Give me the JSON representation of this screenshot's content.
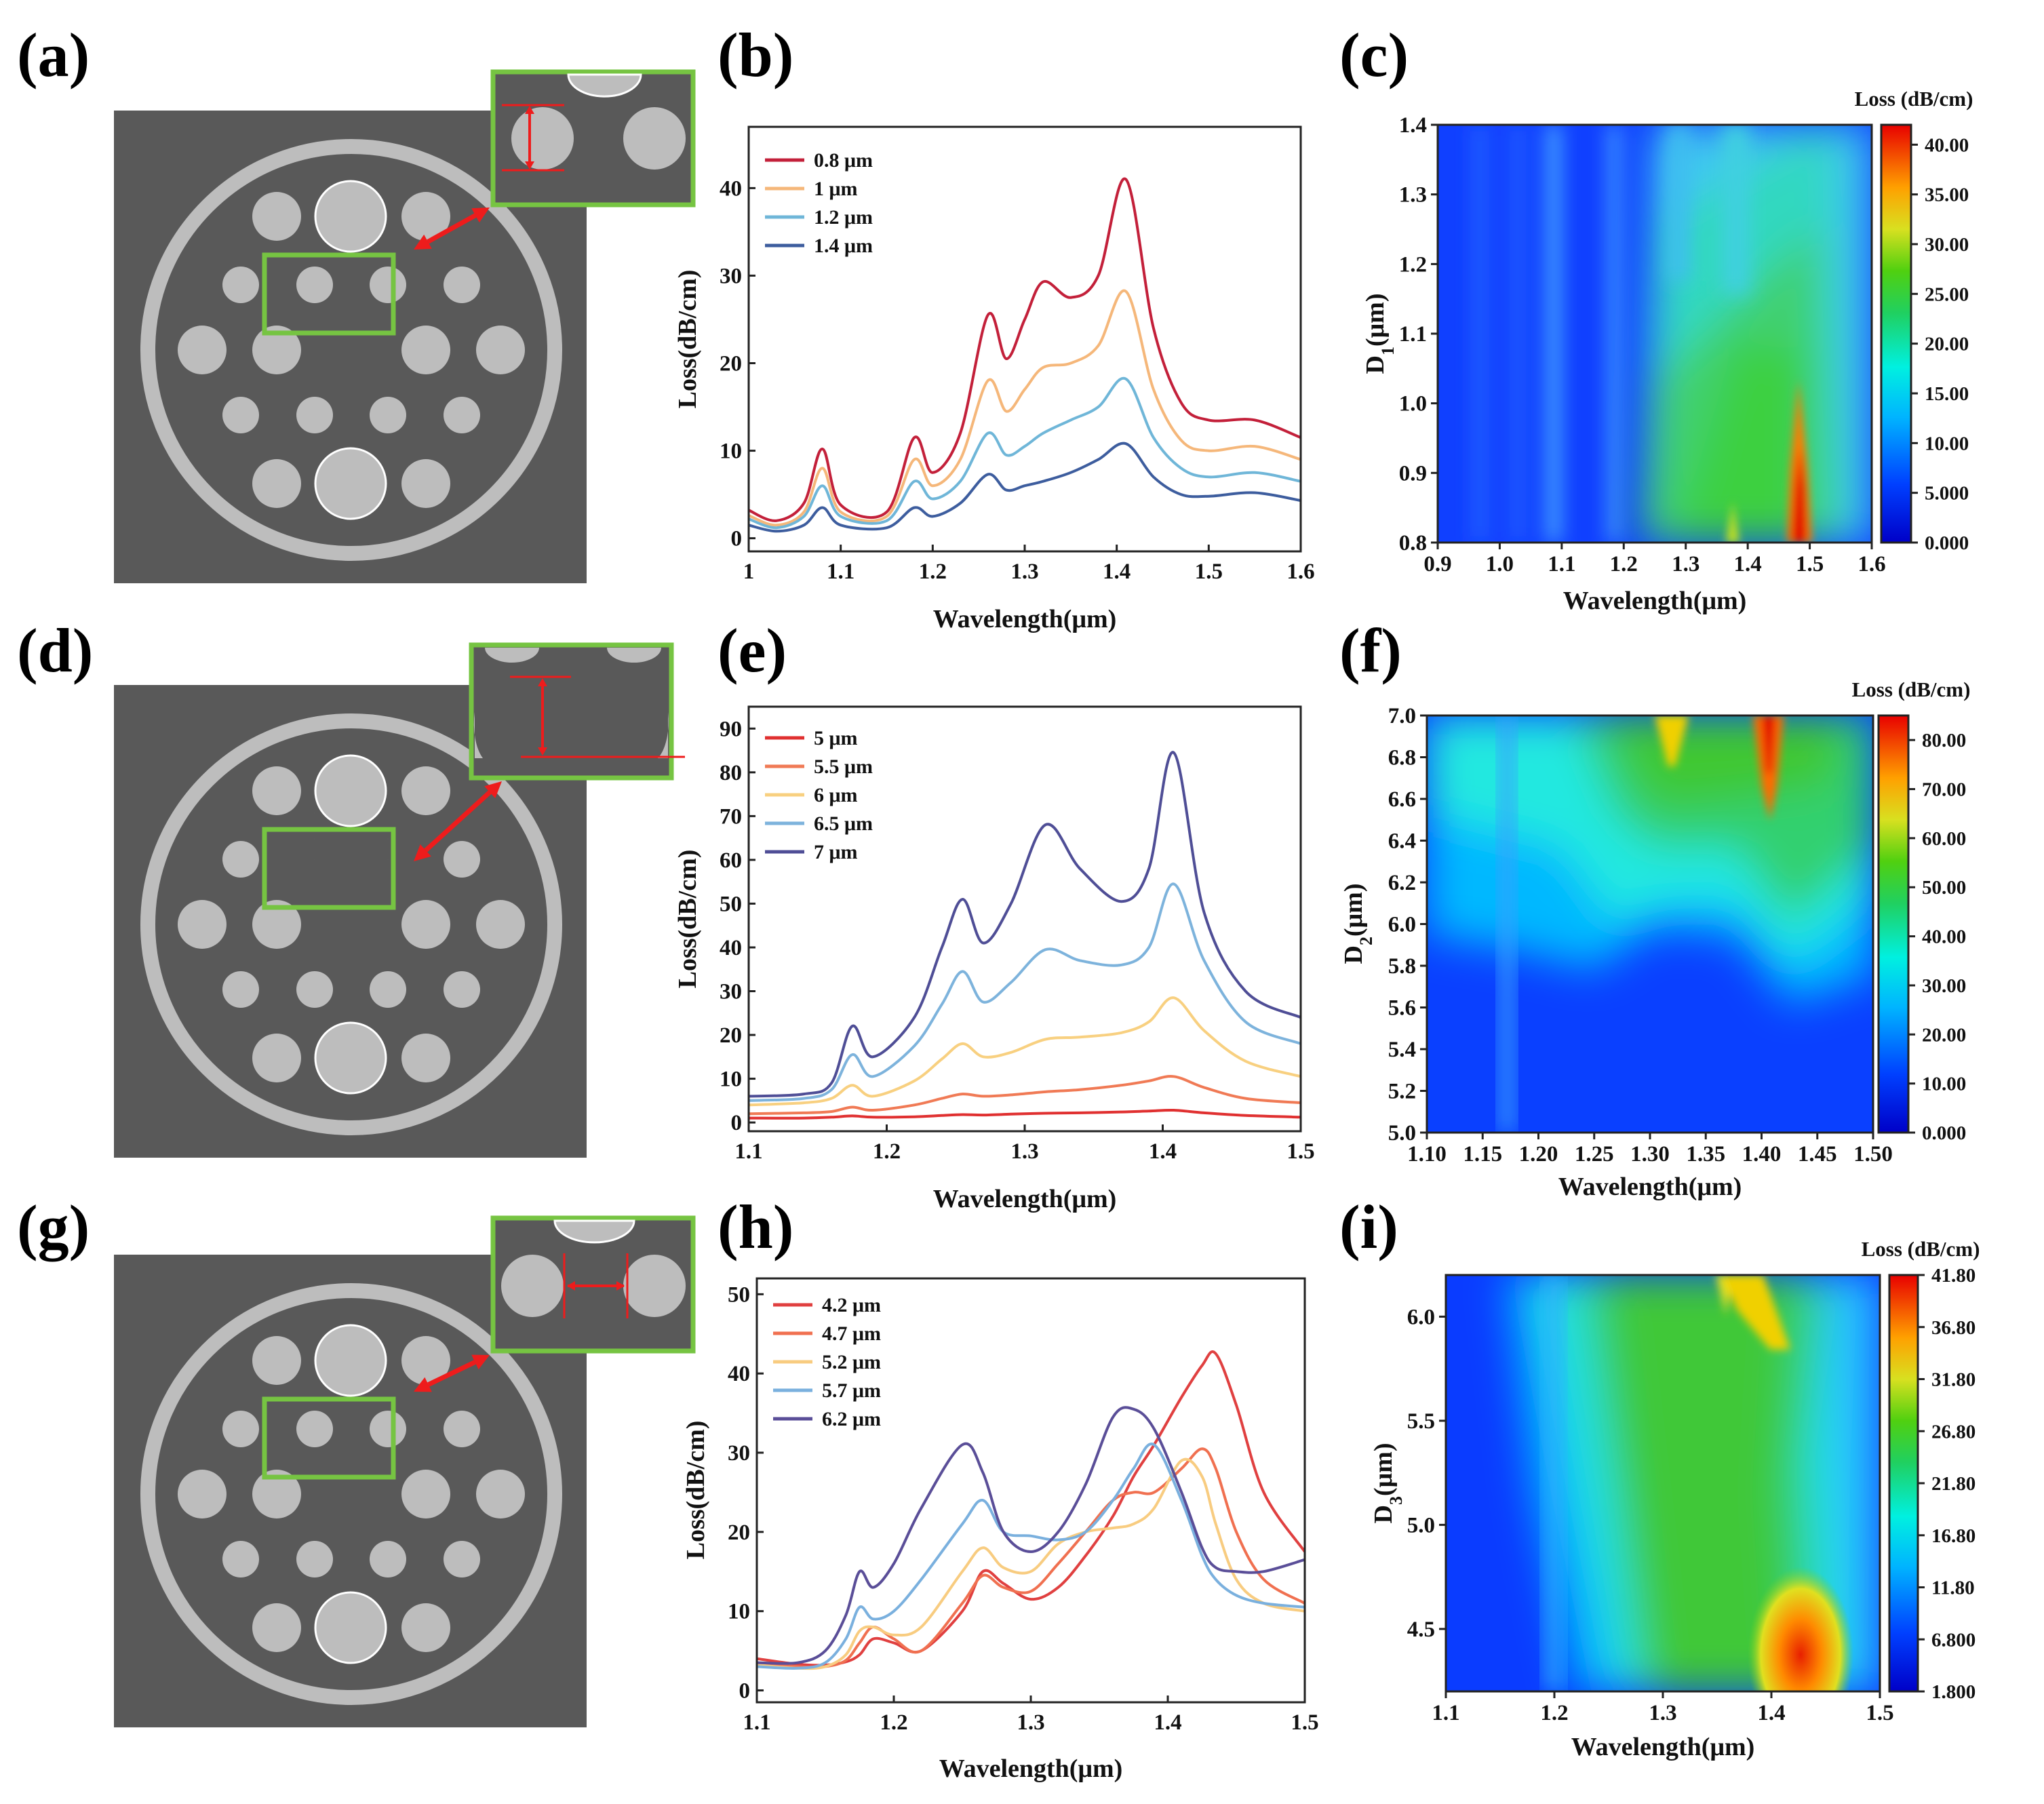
{
  "panel_labels": [
    "(a)",
    "(b)",
    "(c)",
    "(d)",
    "(e)",
    "(f)",
    "(g)",
    "(h)",
    "(i)"
  ],
  "colors": {
    "fiber_bg": "#595959",
    "tube": "#bdbdbd",
    "zoom_box": "#76c442",
    "arrow": "#ee1c1c"
  },
  "chart_data": [
    {
      "id": "b",
      "type": "line",
      "xlabel": "Wavelength(μm)",
      "ylabel": "Loss(dB/cm)",
      "xlim": [
        1.0,
        1.6
      ],
      "ylim": [
        -1.5,
        47
      ],
      "xticks": [
        1,
        1.1,
        1.2,
        1.3,
        1.4,
        1.5,
        1.6
      ],
      "xtick_labels": [
        "1",
        "1.1",
        "1.2",
        "1.3",
        "1.4",
        "1.5",
        "1.6"
      ],
      "yticks": [
        0,
        10,
        20,
        30,
        40
      ],
      "ytick_labels": [
        "0",
        "10",
        "20",
        "30",
        "40"
      ],
      "x": [
        1.0,
        1.03,
        1.06,
        1.08,
        1.1,
        1.15,
        1.18,
        1.2,
        1.23,
        1.26,
        1.28,
        1.3,
        1.32,
        1.35,
        1.38,
        1.41,
        1.44,
        1.47,
        1.5,
        1.55,
        1.6
      ],
      "series": [
        {
          "name": "0.8 μm",
          "color": "#c3203a",
          "values": [
            3.2,
            2,
            4,
            10.2,
            3.8,
            3,
            11.5,
            7.5,
            12,
            25.5,
            20.5,
            25,
            29.3,
            27.5,
            30,
            41,
            24,
            15.5,
            13.5,
            13.5,
            11.5
          ]
        },
        {
          "name": "1 μm",
          "color": "#f5b77a",
          "values": [
            2.6,
            1.5,
            3,
            8,
            3,
            2.5,
            9,
            6,
            9,
            18,
            14.5,
            17,
            19.5,
            20,
            22,
            28.2,
            17,
            11.2,
            10,
            10.5,
            9
          ]
        },
        {
          "name": "1.2 μm",
          "color": "#6fb6d8",
          "values": [
            2.2,
            1.2,
            2.5,
            6,
            2.5,
            2,
            6.5,
            4.5,
            6.5,
            12,
            9.5,
            10.5,
            12,
            13.5,
            15,
            18.2,
            11.5,
            8,
            7,
            7.5,
            6.5
          ]
        },
        {
          "name": "1.4 μm",
          "color": "#3d5d9e",
          "values": [
            1.5,
            0.8,
            1.5,
            3.5,
            1.5,
            1.2,
            3.5,
            2.5,
            4,
            7.3,
            5.5,
            6,
            6.5,
            7.5,
            9,
            10.8,
            7,
            5,
            4.8,
            5.2,
            4.3
          ]
        }
      ]
    },
    {
      "id": "c",
      "type": "heatmap",
      "xlabel": "Wavelength(μm)",
      "ylabel": "D1(μm)",
      "xlim": [
        0.9,
        1.6
      ],
      "ylim": [
        0.8,
        1.4
      ],
      "xticks": [
        0.9,
        1.0,
        1.1,
        1.2,
        1.3,
        1.4,
        1.5,
        1.6
      ],
      "xtick_labels": [
        "0.9",
        "1.0",
        "1.1",
        "1.2",
        "1.3",
        "1.4",
        "1.5",
        "1.6"
      ],
      "yticks": [
        0.8,
        0.9,
        1.0,
        1.1,
        1.2,
        1.3,
        1.4
      ],
      "ytick_labels": [
        "0.8",
        "0.9",
        "1.0",
        "1.1",
        "1.2",
        "1.3",
        "1.4"
      ],
      "colorbar_title": "Loss (dB/cm)",
      "colorbar_range": [
        0,
        42
      ],
      "colorbar_ticks": [
        "0.000",
        "5.000",
        "10.00",
        "15.00",
        "20.00",
        "25.00",
        "30.00",
        "35.00",
        "40.00"
      ],
      "colorbar_values": [
        0,
        5,
        10,
        15,
        20,
        25,
        30,
        35,
        40
      ]
    },
    {
      "id": "e",
      "type": "line",
      "xlabel": "Wavelength(μm)",
      "ylabel": "Loss(dB/cm)",
      "xlim": [
        1.1,
        1.5
      ],
      "ylim": [
        -2,
        95
      ],
      "xticks": [
        1.1,
        1.2,
        1.3,
        1.4,
        1.5
      ],
      "xtick_labels": [
        "1.1",
        "1.2",
        "1.3",
        "1.4",
        "1.5"
      ],
      "yticks": [
        0,
        10,
        20,
        30,
        40,
        50,
        60,
        70,
        80,
        90
      ],
      "ytick_labels": [
        "0",
        "10",
        "20",
        "30",
        "40",
        "50",
        "60",
        "70",
        "80",
        "90"
      ],
      "x": [
        1.1,
        1.14,
        1.16,
        1.175,
        1.19,
        1.22,
        1.24,
        1.255,
        1.27,
        1.29,
        1.315,
        1.34,
        1.37,
        1.39,
        1.408,
        1.43,
        1.46,
        1.5
      ],
      "series": [
        {
          "name": "5 μm",
          "color": "#e03030",
          "values": [
            1,
            1,
            1.2,
            1.5,
            1.2,
            1.3,
            1.6,
            1.8,
            1.7,
            1.9,
            2.1,
            2.2,
            2.4,
            2.6,
            2.8,
            2.2,
            1.6,
            1.2
          ]
        },
        {
          "name": "5.5 μm",
          "color": "#f07a55",
          "values": [
            2,
            2.2,
            2.5,
            3.5,
            2.8,
            4,
            5.5,
            6.5,
            6,
            6.3,
            7,
            7.5,
            8.5,
            9.5,
            10.5,
            8,
            5.5,
            4.5
          ]
        },
        {
          "name": "6 μm",
          "color": "#f8d080",
          "values": [
            4,
            4.5,
            5.5,
            8.5,
            6,
            9.5,
            14.5,
            18,
            15,
            16,
            19,
            19.5,
            20.5,
            23,
            28.5,
            21,
            14,
            10.5
          ]
        },
        {
          "name": "6.5 μm",
          "color": "#7db3dc",
          "values": [
            5,
            5.5,
            7.5,
            15.5,
            10.5,
            17.5,
            27,
            34.5,
            27.5,
            32,
            39.5,
            37,
            36,
            40,
            54.5,
            37,
            23,
            18
          ]
        },
        {
          "name": "7 μm",
          "color": "#4f4e96",
          "values": [
            6,
            6.5,
            9,
            22,
            15,
            24,
            40,
            51,
            41,
            50,
            68,
            58,
            50.5,
            58,
            84.5,
            48,
            30,
            24
          ]
        }
      ]
    },
    {
      "id": "f",
      "type": "heatmap",
      "xlabel": "Wavelength(μm)",
      "ylabel": "D2(μm)",
      "xlim": [
        1.1,
        1.5
      ],
      "ylim": [
        5.0,
        7.0
      ],
      "xticks": [
        1.1,
        1.15,
        1.2,
        1.25,
        1.3,
        1.35,
        1.4,
        1.45,
        1.5
      ],
      "xtick_labels": [
        "1.10",
        "1.15",
        "1.20",
        "1.25",
        "1.30",
        "1.35",
        "1.40",
        "1.45",
        "1.50"
      ],
      "yticks": [
        5.0,
        5.2,
        5.4,
        5.6,
        5.8,
        6.0,
        6.2,
        6.4,
        6.6,
        6.8,
        7.0
      ],
      "ytick_labels": [
        "5.0",
        "5.2",
        "5.4",
        "5.6",
        "5.8",
        "6.0",
        "6.2",
        "6.4",
        "6.6",
        "6.8",
        "7.0"
      ],
      "colorbar_title": "Loss (dB/cm)",
      "colorbar_range": [
        0,
        85
      ],
      "colorbar_ticks": [
        "0.000",
        "10.00",
        "20.00",
        "30.00",
        "40.00",
        "50.00",
        "60.00",
        "70.00",
        "80.00"
      ],
      "colorbar_values": [
        0,
        10,
        20,
        30,
        40,
        50,
        60,
        70,
        80
      ]
    },
    {
      "id": "h",
      "type": "line",
      "xlabel": "Wavelength(μm)",
      "ylabel": "Loss(dB/cm)",
      "xlim": [
        1.1,
        1.5
      ],
      "ylim": [
        -1.5,
        52
      ],
      "xticks": [
        1.1,
        1.2,
        1.3,
        1.4,
        1.5
      ],
      "xtick_labels": [
        "1.1",
        "1.2",
        "1.3",
        "1.4",
        "1.5"
      ],
      "yticks": [
        0,
        10,
        20,
        30,
        40,
        50
      ],
      "ytick_labels": [
        "0",
        "10",
        "20",
        "30",
        "40",
        "50"
      ],
      "x": [
        1.1,
        1.13,
        1.15,
        1.165,
        1.175,
        1.185,
        1.2,
        1.22,
        1.25,
        1.265,
        1.28,
        1.3,
        1.32,
        1.34,
        1.36,
        1.375,
        1.39,
        1.41,
        1.425,
        1.435,
        1.45,
        1.47,
        1.5
      ],
      "series": [
        {
          "name": "4.2 μm",
          "color": "#e04040",
          "values": [
            4,
            3.3,
            3.2,
            3.6,
            4.5,
            6.5,
            6,
            5,
            10,
            15,
            13.5,
            11.5,
            13,
            17,
            22,
            27,
            31,
            37,
            41,
            42.5,
            36,
            25,
            17.5
          ]
        },
        {
          "name": "4.7 μm",
          "color": "#f07050",
          "values": [
            3.5,
            3,
            3,
            3.8,
            6,
            8,
            6.5,
            5,
            11,
            14.5,
            13,
            12.5,
            16,
            20,
            24,
            25,
            25,
            28,
            30.5,
            28,
            20,
            14,
            11
          ]
        },
        {
          "name": "5.2 μm",
          "color": "#f8cc80",
          "values": [
            3.2,
            2.8,
            3,
            4.5,
            7.5,
            8,
            7,
            8,
            15,
            18,
            15.5,
            15,
            18.5,
            20,
            20.5,
            21,
            23,
            29,
            27,
            21,
            14,
            11,
            10
          ]
        },
        {
          "name": "5.7 μm",
          "color": "#7ab0de",
          "values": [
            3,
            2.8,
            3.5,
            6.5,
            10.5,
            9,
            10,
            14,
            21,
            24,
            20,
            19.5,
            19,
            20,
            24,
            28,
            31,
            24,
            17,
            14,
            12,
            11,
            10.5
          ]
        },
        {
          "name": "6.2 μm",
          "color": "#5a4e98",
          "values": [
            3.5,
            3.5,
            5,
            9.5,
            15,
            13,
            16,
            23,
            31,
            27.5,
            20,
            17.5,
            20,
            26,
            34.5,
            35.5,
            33,
            25,
            18,
            15.5,
            15,
            15,
            16.5
          ]
        }
      ]
    },
    {
      "id": "i",
      "type": "heatmap",
      "xlabel": "Wavelength(μm)",
      "ylabel": "D3(μm)",
      "xlim": [
        1.1,
        1.5
      ],
      "ylim": [
        4.2,
        6.2
      ],
      "xticks": [
        1.1,
        1.2,
        1.3,
        1.4,
        1.5
      ],
      "xtick_labels": [
        "1.1",
        "1.2",
        "1.3",
        "1.4",
        "1.5"
      ],
      "yticks": [
        4.5,
        5.0,
        5.5,
        6.0
      ],
      "ytick_labels": [
        "4.5",
        "5.0",
        "5.5",
        "6.0"
      ],
      "colorbar_title": "Loss (dB/cm)",
      "colorbar_range": [
        1.8,
        41.8
      ],
      "colorbar_ticks": [
        "1.800",
        "6.800",
        "11.80",
        "16.80",
        "21.80",
        "26.80",
        "31.80",
        "36.80",
        "41.80"
      ],
      "colorbar_values": [
        1.8,
        6.8,
        11.8,
        16.8,
        21.8,
        26.8,
        31.8,
        36.8,
        41.8
      ]
    }
  ]
}
